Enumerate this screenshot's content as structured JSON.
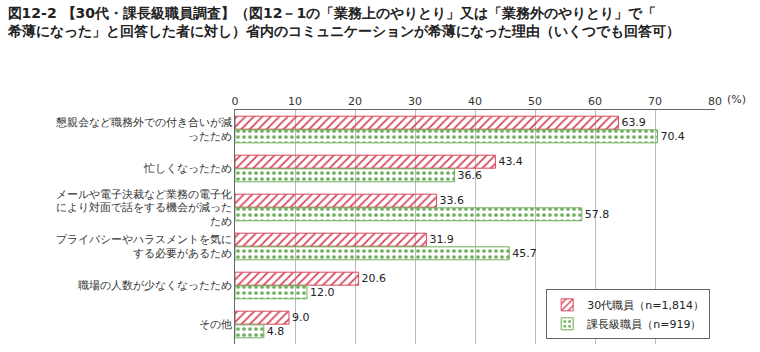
{
  "chart_data": {
    "type": "bar",
    "orientation": "horizontal",
    "title": "図12-2 【30代・課長級職員調査】（図12－1の「業務上のやりとり」又は「業務外のやりとり」で「希薄になった」と回答した者に対し）省内のコミュニケーションが希薄になった理由（いくつでも回答可）",
    "x_label": "(%)",
    "categories": [
      "懇親会など職務外での付き合いが減ったため",
      "忙しくなったため",
      "メールや電子決裁など業務の電子化により対面で話をする機会が減ったため",
      "プライバシーやハラスメントを気にする必要があるため",
      "職場の人数が少なくなったため",
      "その他"
    ],
    "series": [
      {
        "name": "30代職員（n=1,814）",
        "color": "#d9475a",
        "marker": "diagonal_hatch",
        "values": [
          63.9,
          43.4,
          33.6,
          31.9,
          20.6,
          9.0
        ],
        "value_labels": [
          "63.9",
          "43.4",
          "33.6",
          "31.9",
          "20.6",
          "9.0"
        ]
      },
      {
        "name": "課長級職員（n=919）",
        "color": "#6fae5c",
        "marker": "dots",
        "values": [
          70.4,
          36.6,
          57.8,
          45.7,
          12.0,
          4.8
        ],
        "value_labels": [
          "70.4",
          "36.6",
          "57.8",
          "45.7",
          "12.0",
          "4.8"
        ]
      }
    ],
    "xlim": [
      0,
      80
    ],
    "xticks": [
      0,
      10,
      20,
      30,
      40,
      50,
      60,
      70,
      80
    ],
    "grid": true,
    "legend": "lower right",
    "data_labels": true
  }
}
